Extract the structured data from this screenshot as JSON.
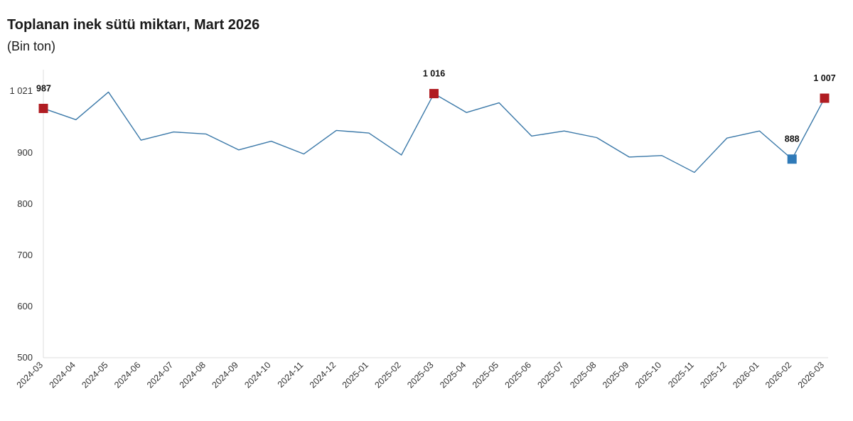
{
  "chart_data": {
    "type": "line",
    "title": "Toplanan inek sütü miktarı, Mart 2026",
    "subtitle": "(Bin ton)",
    "xlabel": "",
    "ylabel": "",
    "ylim": [
      500,
      1021
    ],
    "yticks": [
      {
        "value": 500,
        "label": "500"
      },
      {
        "value": 600,
        "label": "600"
      },
      {
        "value": 700,
        "label": "700"
      },
      {
        "value": 800,
        "label": "800"
      },
      {
        "value": 900,
        "label": "900"
      },
      {
        "value": 1021,
        "label": "1 021"
      }
    ],
    "grid": false,
    "x": [
      "2024-03",
      "2024-04",
      "2024-05",
      "2024-06",
      "2024-07",
      "2024-08",
      "2024-09",
      "2024-10",
      "2024-11",
      "2024-12",
      "2025-01",
      "2025-02",
      "2025-03",
      "2025-04",
      "2025-05",
      "2025-06",
      "2025-07",
      "2025-08",
      "2025-09",
      "2025-10",
      "2025-11",
      "2025-12",
      "2026-01",
      "2026-02",
      "2026-03"
    ],
    "series": [
      {
        "values": [
          987,
          965,
          1019,
          925,
          941,
          937,
          906,
          923,
          898,
          944,
          939,
          896,
          1016,
          979,
          998,
          933,
          943,
          930,
          892,
          895,
          862,
          929,
          943,
          888,
          1007
        ],
        "color": "#3a78a8"
      }
    ],
    "highlights": [
      {
        "index": 0,
        "label": "987",
        "color": "#b01c22"
      },
      {
        "index": 12,
        "label": "1 016",
        "color": "#b01c22"
      },
      {
        "index": 23,
        "label": "888",
        "color": "#2f7ab8"
      },
      {
        "index": 24,
        "label": "1 007",
        "color": "#b01c22"
      }
    ]
  }
}
